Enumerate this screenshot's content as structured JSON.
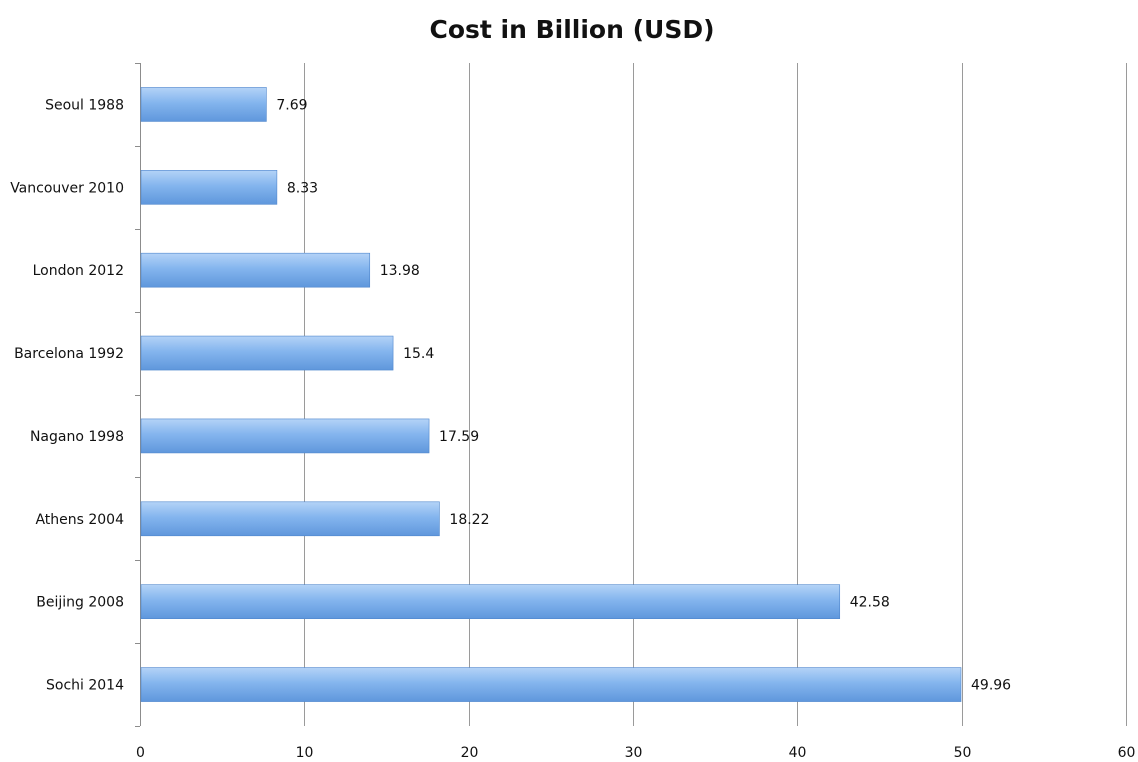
{
  "chart_data": {
    "type": "bar",
    "orientation": "horizontal",
    "title": "Cost in Billion (USD)",
    "xlabel": "",
    "ylabel": "",
    "categories": [
      "Seoul 1988",
      "Vancouver 2010",
      "London 2012",
      "Barcelona 1992",
      "Nagano 1998",
      "Athens 2004",
      "Beijing 2008",
      "Sochi 2014"
    ],
    "values": [
      7.69,
      8.33,
      13.98,
      15.4,
      17.59,
      18.22,
      42.58,
      49.96
    ],
    "data_labels": [
      "7.69",
      "8.33",
      "13.98",
      "15.4",
      "17.59",
      "18.22",
      "42.58",
      "49.96"
    ],
    "xlim": [
      0,
      60
    ],
    "x_ticks": [
      0,
      10,
      20,
      30,
      40,
      50,
      60
    ],
    "x_tick_labels": [
      "0",
      "10",
      "20",
      "30",
      "40",
      "50",
      "60"
    ],
    "grid": "vertical major gridlines",
    "legend": "none",
    "colors": {
      "bar_light": "#b4d3f7",
      "bar_mid": "#84b5ee",
      "bar_dark": "#5f97dc",
      "bar_edge": "#4f86cc",
      "grid": "#9a9a9a",
      "text": "#111111"
    }
  }
}
